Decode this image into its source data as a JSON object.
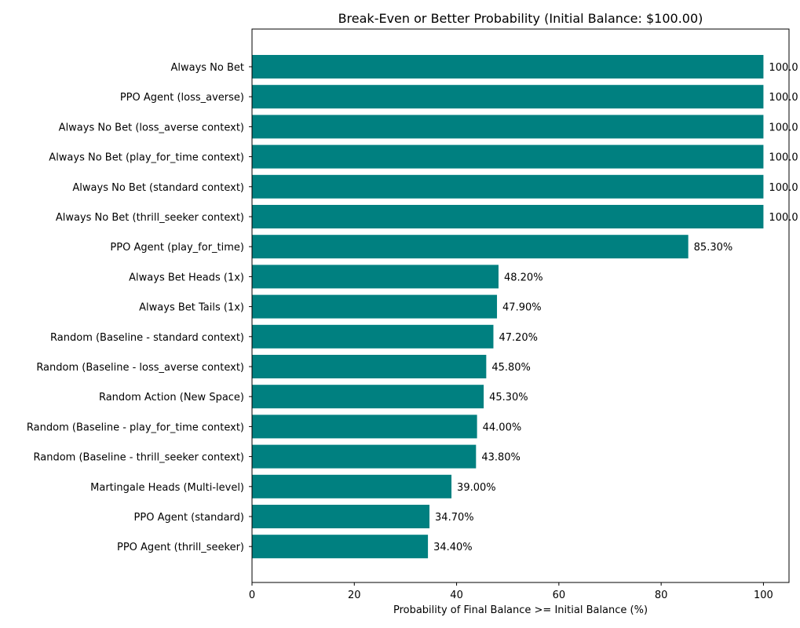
{
  "chart_data": {
    "type": "bar",
    "orientation": "horizontal",
    "title": "Break-Even or Better Probability (Initial Balance: $100.00)",
    "xlabel": "Probability of Final Balance >= Initial Balance (%)",
    "ylabel": "",
    "xlim": [
      0,
      105
    ],
    "xticks": [
      0,
      20,
      40,
      60,
      80,
      100
    ],
    "grid": false,
    "bar_color": "#008080",
    "categories": [
      "Always No Bet",
      "PPO Agent (loss_averse)",
      "Always No Bet (loss_averse context)",
      "Always No Bet (play_for_time context)",
      "Always No Bet (standard context)",
      "Always No Bet (thrill_seeker context)",
      "PPO Agent (play_for_time)",
      "Always Bet Heads (1x)",
      "Always Bet Tails (1x)",
      "Random (Baseline - standard context)",
      "Random (Baseline - loss_averse context)",
      "Random Action (New Space)",
      "Random (Baseline - play_for_time context)",
      "Random (Baseline - thrill_seeker context)",
      "Martingale Heads (Multi-level)",
      "PPO Agent (standard)",
      "PPO Agent (thrill_seeker)"
    ],
    "values": [
      100.0,
      100.0,
      100.0,
      100.0,
      100.0,
      100.0,
      85.3,
      48.2,
      47.9,
      47.2,
      45.8,
      45.3,
      44.0,
      43.8,
      39.0,
      34.7,
      34.4
    ],
    "value_labels": [
      "100.0",
      "100.0",
      "100.0",
      "100.0",
      "100.0",
      "100.0",
      "85.30%",
      "48.20%",
      "47.90%",
      "47.20%",
      "45.80%",
      "45.30%",
      "44.00%",
      "43.80%",
      "39.00%",
      "34.70%",
      "34.40%"
    ]
  }
}
